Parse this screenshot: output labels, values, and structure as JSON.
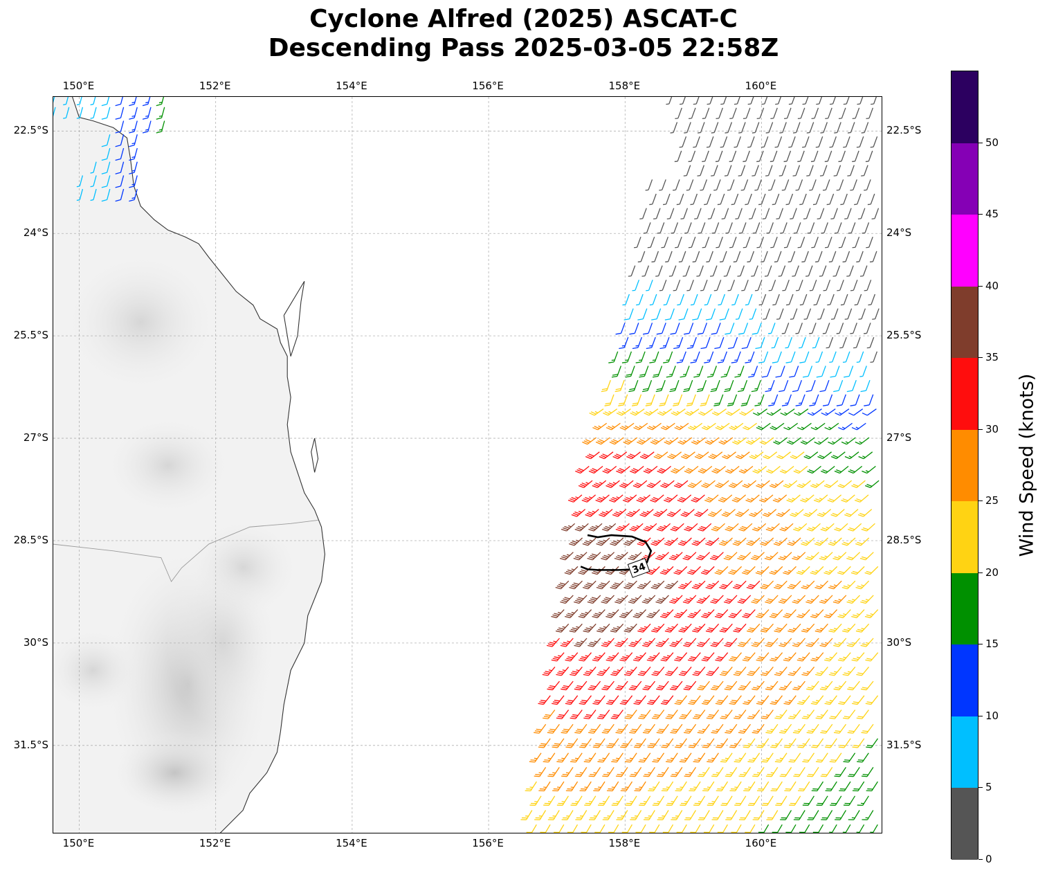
{
  "title_line1": "Cyclone Alfred (2025) ASCAT-C",
  "title_line2": "Descending Pass 2025-03-05 22:58Z",
  "map": {
    "lon_range": [
      149.62,
      161.78
    ],
    "lat_range": [
      -22.0,
      -32.8
    ],
    "lon_ticks": [
      150,
      152,
      154,
      156,
      158,
      160
    ],
    "lon_tick_labels": [
      "150°E",
      "152°E",
      "154°E",
      "156°E",
      "158°E",
      "160°E"
    ],
    "lat_ticks": [
      -22.5,
      -24,
      -25.5,
      -27,
      -28.5,
      -30,
      -31.5
    ],
    "lat_tick_labels": [
      "22.5°S",
      "24°S",
      "25.5°S",
      "27°S",
      "28.5°S",
      "30°S",
      "31.5°S"
    ],
    "gridlines": true,
    "contour_label": "34",
    "land_shading": "grayscale terrain"
  },
  "colorbar": {
    "label": "Wind Speed (knots)",
    "bounds": [
      0,
      5,
      10,
      15,
      20,
      25,
      30,
      35,
      40,
      45,
      50,
      55
    ],
    "tick_labels": [
      "0",
      "5",
      "10",
      "15",
      "20",
      "25",
      "30",
      "35",
      "40",
      "45",
      "50"
    ],
    "colors": [
      "#555555",
      "#00bfff",
      "#0036ff",
      "#009000",
      "#ffd313",
      "#ff8c00",
      "#ff0d0d",
      "#7f3d2c",
      "#ff00ff",
      "#8500b5",
      "#2c0060"
    ]
  },
  "colors": {
    "coastline": "#333333",
    "gridline": "#b0b0b0",
    "contour": "#000000"
  }
}
